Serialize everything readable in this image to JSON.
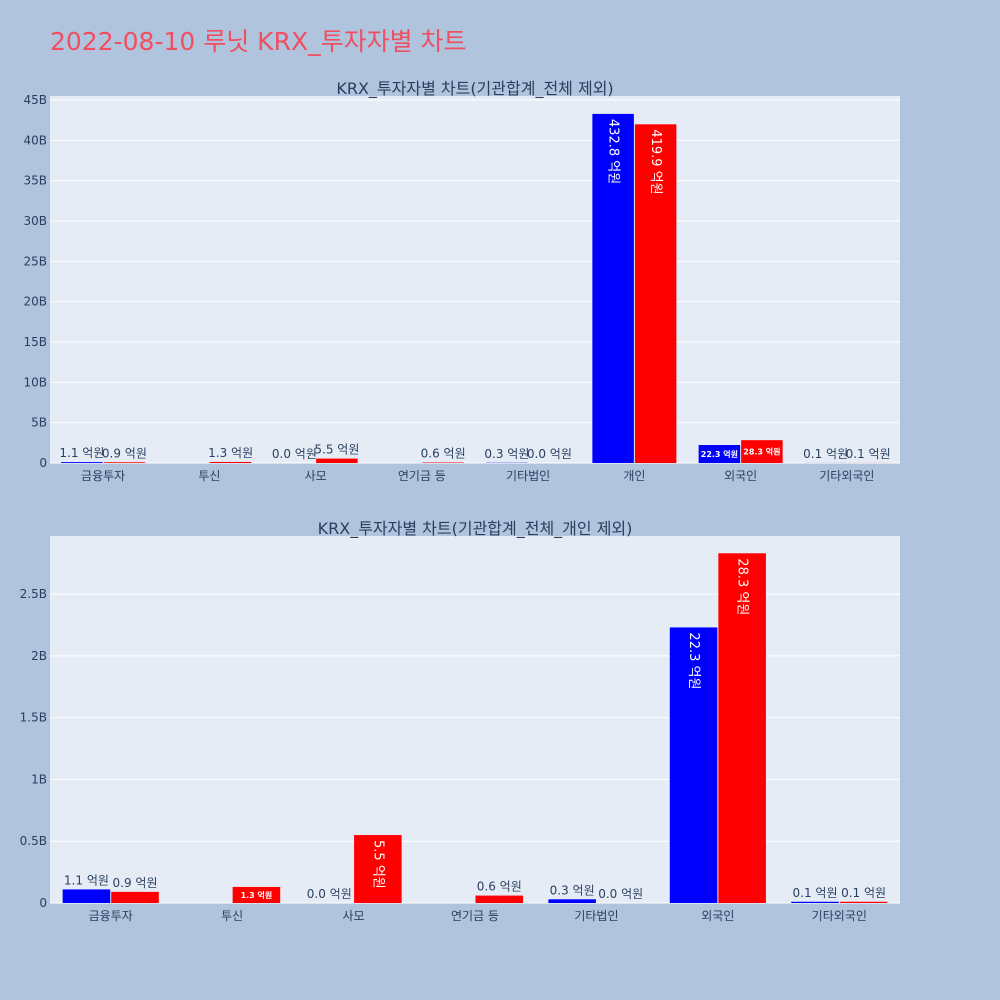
{
  "page": {
    "title": "2022-08-10 루닛 KRX_투자자별 차트"
  },
  "colors": {
    "background": "#b0c4de",
    "plot_background": "#e5ecf6",
    "series_buy": "#0000ff",
    "series_sell": "#ff0000",
    "title_color": "#ef4f5f",
    "text_color": "#2a3f5f"
  },
  "chart_data": [
    {
      "type": "bar",
      "title": "KRX_투자자별 차트(기관합계_전체 제외)",
      "xlabel": "",
      "ylabel": "",
      "ylim": [
        0,
        45500000000
      ],
      "yticks": [
        0,
        5000000000,
        10000000000,
        15000000000,
        20000000000,
        25000000000,
        30000000000,
        35000000000,
        40000000000,
        45000000000
      ],
      "ytick_labels": [
        "0",
        "5B",
        "10B",
        "15B",
        "20B",
        "25B",
        "30B",
        "35B",
        "40B",
        "45B"
      ],
      "grid": true,
      "categories": [
        "금융투자",
        "투신",
        "사모",
        "연기금 등",
        "기타법인",
        "개인",
        "외국인",
        "기타외국인"
      ],
      "series": [
        {
          "color": "#0000ff",
          "values": [
            110000000,
            0,
            0,
            0,
            30000000,
            43280000000,
            2230000000,
            10000000
          ],
          "labels": [
            "1.1 억원",
            "",
            "0.0 억원",
            "",
            "0.3 억원",
            "432.8 억원",
            "22.3 억원",
            "0.1 억원"
          ]
        },
        {
          "color": "#ff0000",
          "values": [
            90000000,
            130000000,
            550000000,
            60000000,
            0,
            41990000000,
            2830000000,
            10000000
          ],
          "labels": [
            "0.9 억원",
            "1.3 억원",
            "5.5 억원",
            "0.6 억원",
            "0.0 억원",
            "419.9 억원",
            "28.3 억원",
            "0.1 억원"
          ]
        }
      ]
    },
    {
      "type": "bar",
      "title": "KRX_투자자별 차트(기관합계_전체_개인 제외)",
      "xlabel": "",
      "ylabel": "",
      "ylim": [
        0,
        2970000000
      ],
      "yticks": [
        0,
        500000000,
        1000000000,
        1500000000,
        2000000000,
        2500000000
      ],
      "ytick_labels": [
        "0",
        "0.5B",
        "1B",
        "1.5B",
        "2B",
        "2.5B"
      ],
      "grid": true,
      "categories": [
        "금융투자",
        "투신",
        "사모",
        "연기금 등",
        "기타법인",
        "외국인",
        "기타외국인"
      ],
      "series": [
        {
          "color": "#0000ff",
          "values": [
            110000000,
            0,
            0,
            0,
            30000000,
            2230000000,
            10000000
          ],
          "labels": [
            "1.1 억원",
            "",
            "0.0 억원",
            "",
            "0.3 억원",
            "22.3 억원",
            "0.1 억원"
          ]
        },
        {
          "color": "#ff0000",
          "values": [
            90000000,
            130000000,
            550000000,
            60000000,
            0,
            2830000000,
            10000000
          ],
          "labels": [
            "0.9 억원",
            "1.3 억원",
            "5.5 억원",
            "0.6 억원",
            "0.0 억원",
            "28.3 억원",
            "0.1 억원"
          ]
        }
      ]
    }
  ]
}
